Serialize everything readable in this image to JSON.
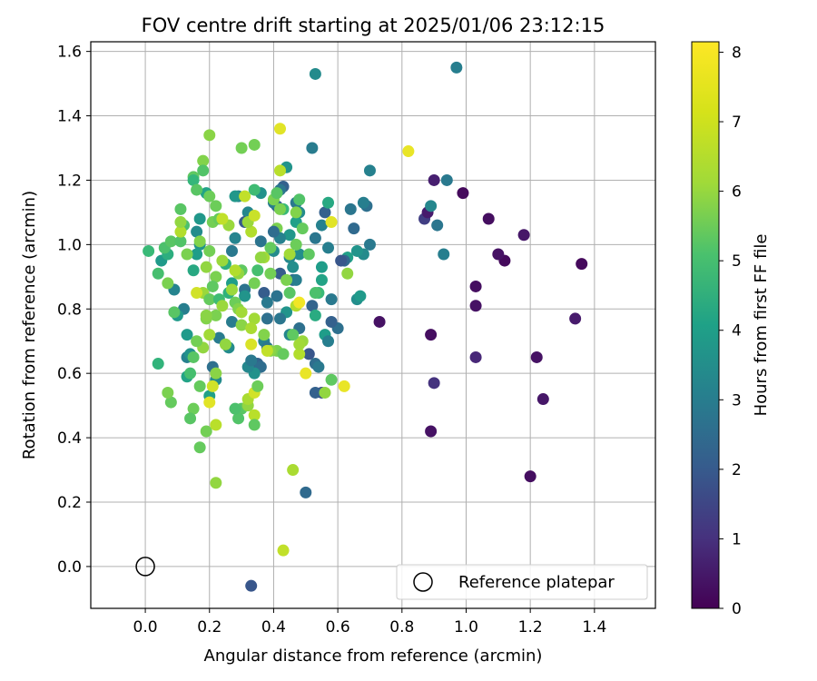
{
  "chart_data": {
    "type": "scatter",
    "title": "FOV centre drift starting at 2025/01/06 23:12:15",
    "xlabel": "Angular distance from reference (arcmin)",
    "ylabel": "Rotation from reference (arcmin)",
    "xlim": [
      -0.17,
      1.59
    ],
    "ylim": [
      -0.13,
      1.63
    ],
    "xticks": [
      "0.0",
      "0.2",
      "0.4",
      "0.6",
      "0.8",
      "1.0",
      "1.2",
      "1.4"
    ],
    "xtick_values": [
      0,
      0.2,
      0.4,
      0.6,
      0.8,
      1.0,
      1.2,
      1.4
    ],
    "yticks": [
      "0.0",
      "0.2",
      "0.4",
      "0.6",
      "0.8",
      "1.0",
      "1.2",
      "1.4",
      "1.6"
    ],
    "ytick_values": [
      0,
      0.2,
      0.4,
      0.6,
      0.8,
      1.0,
      1.2,
      1.4,
      1.6
    ],
    "grid": true,
    "colormap": "viridis",
    "colorbar": {
      "label": "Hours from first FF file",
      "range": [
        0,
        8.15
      ],
      "ticks": [
        "0",
        "1",
        "2",
        "3",
        "4",
        "5",
        "6",
        "7",
        "8"
      ],
      "tick_values": [
        0,
        1,
        2,
        3,
        4,
        5,
        6,
        7,
        8
      ]
    },
    "reference": {
      "x": 0.0,
      "y": 0.0
    },
    "legend": {
      "entries": [
        "Reference platepar"
      ],
      "placement": "lower right"
    },
    "points": [
      [
        1.36,
        0.94,
        0.2
      ],
      [
        1.34,
        0.77,
        0.6
      ],
      [
        1.24,
        0.52,
        0.5
      ],
      [
        1.22,
        0.65,
        0.4
      ],
      [
        1.2,
        0.28,
        0.3
      ],
      [
        1.18,
        1.03,
        0.5
      ],
      [
        1.12,
        0.95,
        0.2
      ],
      [
        1.1,
        0.97,
        0.4
      ],
      [
        1.07,
        1.08,
        0.3
      ],
      [
        1.03,
        0.87,
        0.3
      ],
      [
        1.03,
        0.81,
        0.4
      ],
      [
        1.03,
        0.65,
        0.9
      ],
      [
        0.99,
        1.16,
        0.2
      ],
      [
        0.9,
        1.2,
        0.7
      ],
      [
        0.89,
        0.72,
        0.3
      ],
      [
        0.89,
        0.42,
        0.4
      ],
      [
        0.9,
        0.57,
        1.2
      ],
      [
        0.87,
        1.08,
        1.5
      ],
      [
        0.88,
        1.1,
        0.6
      ],
      [
        0.73,
        0.76,
        0.4
      ],
      [
        0.97,
        1.55,
        3.5
      ],
      [
        0.91,
        1.06,
        3.2
      ],
      [
        0.93,
        0.97,
        3.5
      ],
      [
        0.94,
        1.2,
        3.3
      ],
      [
        0.89,
        1.12,
        3.8
      ],
      [
        0.53,
        1.53,
        3.9
      ],
      [
        0.7,
        1.23,
        3.6
      ],
      [
        0.69,
        1.12,
        3.0
      ],
      [
        0.68,
        1.13,
        3.5
      ],
      [
        0.7,
        1.0,
        3.3
      ],
      [
        0.68,
        0.97,
        3.9
      ],
      [
        0.66,
        0.98,
        4.2
      ],
      [
        0.66,
        0.83,
        4.0
      ],
      [
        0.67,
        0.84,
        4.4
      ],
      [
        0.65,
        1.05,
        2.8
      ],
      [
        0.64,
        1.11,
        3.2
      ],
      [
        0.63,
        0.96,
        4.6
      ],
      [
        0.62,
        0.95,
        2.7
      ],
      [
        0.61,
        0.95,
        2.2
      ],
      [
        0.63,
        0.91,
        6.8
      ],
      [
        0.6,
        0.74,
        3.0
      ],
      [
        0.58,
        0.76,
        2.5
      ],
      [
        0.58,
        0.83,
        3.3
      ],
      [
        0.57,
        0.99,
        3.5
      ],
      [
        0.56,
        1.1,
        2.5
      ],
      [
        0.55,
        1.06,
        3.6
      ],
      [
        0.53,
        1.02,
        3.2
      ],
      [
        0.52,
        1.3,
        3.4
      ],
      [
        0.57,
        1.13,
        4.9
      ],
      [
        0.55,
        0.93,
        4.5
      ],
      [
        0.55,
        0.89,
        4.7
      ],
      [
        0.54,
        0.85,
        5.5
      ],
      [
        0.52,
        0.81,
        2.6
      ],
      [
        0.53,
        0.78,
        5.0
      ],
      [
        0.56,
        0.72,
        4.5
      ],
      [
        0.57,
        0.7,
        3.5
      ],
      [
        0.51,
        0.66,
        2.2
      ],
      [
        0.53,
        0.63,
        2.9
      ],
      [
        0.54,
        0.62,
        3.3
      ],
      [
        0.55,
        0.54,
        2.0
      ],
      [
        0.53,
        0.54,
        2.5
      ],
      [
        0.5,
        0.23,
        2.8
      ],
      [
        0.48,
        0.97,
        4.0
      ],
      [
        0.47,
        1.13,
        3.3
      ],
      [
        0.48,
        1.1,
        3.9
      ],
      [
        0.47,
        1.07,
        4.6
      ],
      [
        0.49,
        1.05,
        6.2
      ],
      [
        0.45,
        1.03,
        4.3
      ],
      [
        0.45,
        0.96,
        3.8
      ],
      [
        0.46,
        0.93,
        4.0
      ],
      [
        0.46,
        0.89,
        2.8
      ],
      [
        0.47,
        0.89,
        3.5
      ],
      [
        0.44,
        0.79,
        4.2
      ],
      [
        0.47,
        0.81,
        7.2
      ],
      [
        0.48,
        0.82,
        8.0
      ],
      [
        0.48,
        0.74,
        3.0
      ],
      [
        0.45,
        0.72,
        3.8
      ],
      [
        0.43,
        1.18,
        2.5
      ],
      [
        0.42,
        1.17,
        3.2
      ],
      [
        0.41,
        1.12,
        2.6
      ],
      [
        0.4,
        1.13,
        3.4
      ],
      [
        0.43,
        1.11,
        5.5
      ],
      [
        0.41,
        1.05,
        6.5
      ],
      [
        0.42,
        1.02,
        3.6
      ],
      [
        0.4,
        1.04,
        2.9
      ],
      [
        0.4,
        0.98,
        3.9
      ],
      [
        0.44,
        1.24,
        4.2
      ],
      [
        0.42,
        0.91,
        2.4
      ],
      [
        0.41,
        0.84,
        3.1
      ],
      [
        0.42,
        0.77,
        3.2
      ],
      [
        0.41,
        0.67,
        6.5
      ],
      [
        0.42,
        1.36,
        7.8
      ],
      [
        0.42,
        1.23,
        7.3
      ],
      [
        0.36,
        1.16,
        4.1
      ],
      [
        0.36,
        1.01,
        3.1
      ],
      [
        0.37,
        0.96,
        7.0
      ],
      [
        0.39,
        0.99,
        6.2
      ],
      [
        0.37,
        0.85,
        2.4
      ],
      [
        0.38,
        0.82,
        3.3
      ],
      [
        0.38,
        0.77,
        3.0
      ],
      [
        0.37,
        0.7,
        3.6
      ],
      [
        0.38,
        0.68,
        3.2
      ],
      [
        0.35,
        0.63,
        2.6
      ],
      [
        0.36,
        0.62,
        2.9
      ],
      [
        0.34,
        0.6,
        4.1
      ],
      [
        0.32,
        0.62,
        3.8
      ],
      [
        0.33,
        0.64,
        3.3
      ],
      [
        0.31,
        0.86,
        3.1
      ],
      [
        0.31,
        0.84,
        4.2
      ],
      [
        0.32,
        1.1,
        3.8
      ],
      [
        0.29,
        1.15,
        3.6
      ],
      [
        0.28,
        1.15,
        4.3
      ],
      [
        0.31,
        1.07,
        2.3
      ],
      [
        0.28,
        1.02,
        3.7
      ],
      [
        0.27,
        0.98,
        3.3
      ],
      [
        0.3,
        0.92,
        6.1
      ],
      [
        0.27,
        0.88,
        4.5
      ],
      [
        0.25,
        0.94,
        5.1
      ],
      [
        0.26,
        0.85,
        5.2
      ],
      [
        0.27,
        0.76,
        3.4
      ],
      [
        0.26,
        0.68,
        3.9
      ],
      [
        0.23,
        0.71,
        3.4
      ],
      [
        0.21,
        0.62,
        3.0
      ],
      [
        0.22,
        0.58,
        3.9
      ],
      [
        0.2,
        0.53,
        4.6
      ],
      [
        0.19,
        1.16,
        4.7
      ],
      [
        0.17,
        1.08,
        4.3
      ],
      [
        0.16,
        1.04,
        3.9
      ],
      [
        0.17,
        1.0,
        4.2
      ],
      [
        0.16,
        0.97,
        4.5
      ],
      [
        0.15,
        0.92,
        4.9
      ],
      [
        0.13,
        0.72,
        4.4
      ],
      [
        0.13,
        0.65,
        3.6
      ],
      [
        0.14,
        0.66,
        4.1
      ],
      [
        0.13,
        0.59,
        4.7
      ],
      [
        0.12,
        0.8,
        3.5
      ],
      [
        0.09,
        0.86,
        3.7
      ],
      [
        0.1,
        0.78,
        4.4
      ],
      [
        0.05,
        0.95,
        4.4
      ],
      [
        0.07,
        0.97,
        5.1
      ],
      [
        0.33,
        -0.06,
        2.2
      ],
      [
        0.01,
        0.98,
        5.5
      ],
      [
        0.04,
        0.63,
        5.3
      ],
      [
        0.04,
        0.91,
        5.7
      ],
      [
        0.06,
        0.99,
        5.8
      ],
      [
        0.08,
        1.01,
        6.0
      ],
      [
        0.11,
        1.01,
        5.9
      ],
      [
        0.12,
        1.06,
        5.8
      ],
      [
        0.11,
        1.11,
        6.0
      ],
      [
        0.15,
        1.21,
        6.1
      ],
      [
        0.15,
        1.2,
        5.4
      ],
      [
        0.16,
        1.17,
        6.0
      ],
      [
        0.18,
        1.26,
        6.6
      ],
      [
        0.18,
        1.23,
        5.9
      ],
      [
        0.2,
        1.34,
        6.7
      ],
      [
        0.2,
        1.15,
        6.3
      ],
      [
        0.21,
        1.07,
        6.4
      ],
      [
        0.23,
        1.08,
        6.2
      ],
      [
        0.22,
        1.12,
        6.3
      ],
      [
        0.17,
        1.01,
        6.6
      ],
      [
        0.2,
        0.98,
        6.4
      ],
      [
        0.19,
        0.93,
        6.8
      ],
      [
        0.22,
        0.9,
        6.5
      ],
      [
        0.21,
        0.87,
        6.1
      ],
      [
        0.18,
        0.85,
        6.9
      ],
      [
        0.2,
        0.83,
        6.2
      ],
      [
        0.23,
        0.83,
        5.6
      ],
      [
        0.22,
        0.78,
        6.5
      ],
      [
        0.19,
        0.77,
        6.6
      ],
      [
        0.2,
        0.72,
        7.0
      ],
      [
        0.18,
        0.68,
        6.8
      ],
      [
        0.16,
        0.7,
        6.4
      ],
      [
        0.15,
        0.65,
        6.0
      ],
      [
        0.14,
        0.6,
        5.7
      ],
      [
        0.17,
        0.56,
        6.2
      ],
      [
        0.15,
        0.49,
        6.3
      ],
      [
        0.14,
        0.46,
        6.0
      ],
      [
        0.17,
        0.37,
        6.2
      ],
      [
        0.19,
        0.42,
        6.4
      ],
      [
        0.08,
        0.51,
        6.2
      ],
      [
        0.07,
        0.54,
        6.5
      ],
      [
        0.25,
        0.69,
        6.8
      ],
      [
        0.27,
        0.86,
        6.9
      ],
      [
        0.28,
        0.82,
        6.3
      ],
      [
        0.29,
        0.8,
        6.6
      ],
      [
        0.3,
        0.75,
        6.7
      ],
      [
        0.29,
        0.91,
        6.8
      ],
      [
        0.28,
        0.92,
        7.2
      ],
      [
        0.3,
        1.3,
        6.4
      ],
      [
        0.34,
        1.31,
        6.4
      ],
      [
        0.34,
        1.17,
        5.6
      ],
      [
        0.31,
        1.15,
        7.4
      ],
      [
        0.33,
        1.04,
        7.2
      ],
      [
        0.32,
        1.07,
        6.9
      ],
      [
        0.34,
        1.09,
        7.5
      ],
      [
        0.36,
        0.96,
        6.8
      ],
      [
        0.35,
        0.92,
        5.7
      ],
      [
        0.34,
        0.88,
        6.4
      ],
      [
        0.34,
        0.77,
        7.0
      ],
      [
        0.33,
        0.69,
        7.7
      ],
      [
        0.33,
        0.74,
        7.1
      ],
      [
        0.3,
        0.49,
        6.0
      ],
      [
        0.29,
        0.46,
        5.9
      ],
      [
        0.28,
        0.49,
        5.8
      ],
      [
        0.32,
        0.5,
        6.8
      ],
      [
        0.32,
        0.52,
        7.1
      ],
      [
        0.34,
        0.54,
        7.6
      ],
      [
        0.34,
        0.47,
        7.3
      ],
      [
        0.34,
        0.44,
        6.1
      ],
      [
        0.35,
        0.56,
        6.3
      ],
      [
        0.37,
        0.72,
        6.6
      ],
      [
        0.39,
        0.67,
        6.7
      ],
      [
        0.38,
        0.67,
        7.4
      ],
      [
        0.4,
        1.14,
        6.5
      ],
      [
        0.41,
        1.16,
        6.0
      ],
      [
        0.43,
        0.66,
        6.2
      ],
      [
        0.44,
        0.89,
        6.5
      ],
      [
        0.45,
        0.97,
        7.0
      ],
      [
        0.47,
        1.0,
        6.3
      ],
      [
        0.47,
        1.1,
        6.6
      ],
      [
        0.48,
        1.14,
        5.9
      ],
      [
        0.49,
        0.7,
        6.9
      ],
      [
        0.48,
        0.66,
        7.2
      ],
      [
        0.48,
        0.69,
        7.0
      ],
      [
        0.51,
        0.97,
        6.1
      ],
      [
        0.53,
        0.85,
        5.8
      ],
      [
        0.56,
        0.54,
        6.8
      ],
      [
        0.58,
        1.07,
        7.8
      ],
      [
        0.58,
        0.58,
        6.1
      ],
      [
        0.62,
        0.56,
        7.9
      ],
      [
        0.5,
        0.6,
        7.9
      ],
      [
        0.82,
        1.29,
        7.9
      ],
      [
        0.46,
        0.3,
        7.1
      ],
      [
        0.43,
        0.05,
        7.4
      ],
      [
        0.22,
        0.26,
        6.8
      ],
      [
        0.22,
        0.44,
        7.3
      ],
      [
        0.21,
        0.56,
        7.6
      ],
      [
        0.2,
        0.51,
        7.8
      ],
      [
        0.22,
        0.6,
        6.7
      ],
      [
        0.07,
        0.88,
        6.5
      ],
      [
        0.09,
        0.79,
        6.0
      ],
      [
        0.24,
        0.95,
        6.9
      ],
      [
        0.26,
        1.06,
        6.9
      ],
      [
        0.11,
        1.04,
        7.2
      ],
      [
        0.11,
        1.07,
        6.8
      ],
      [
        0.13,
        0.97,
        6.5
      ],
      [
        0.24,
        1.08,
        7.4
      ],
      [
        0.19,
        0.78,
        6.7
      ],
      [
        0.24,
        0.81,
        6.9
      ],
      [
        0.16,
        0.85,
        7.6
      ],
      [
        0.42,
        1.11,
        6.5
      ],
      [
        0.39,
        0.91,
        6.4
      ],
      [
        0.46,
        0.72,
        6.1
      ],
      [
        0.45,
        0.85,
        6.0
      ],
      [
        0.3,
        0.79,
        7.0
      ]
    ]
  }
}
